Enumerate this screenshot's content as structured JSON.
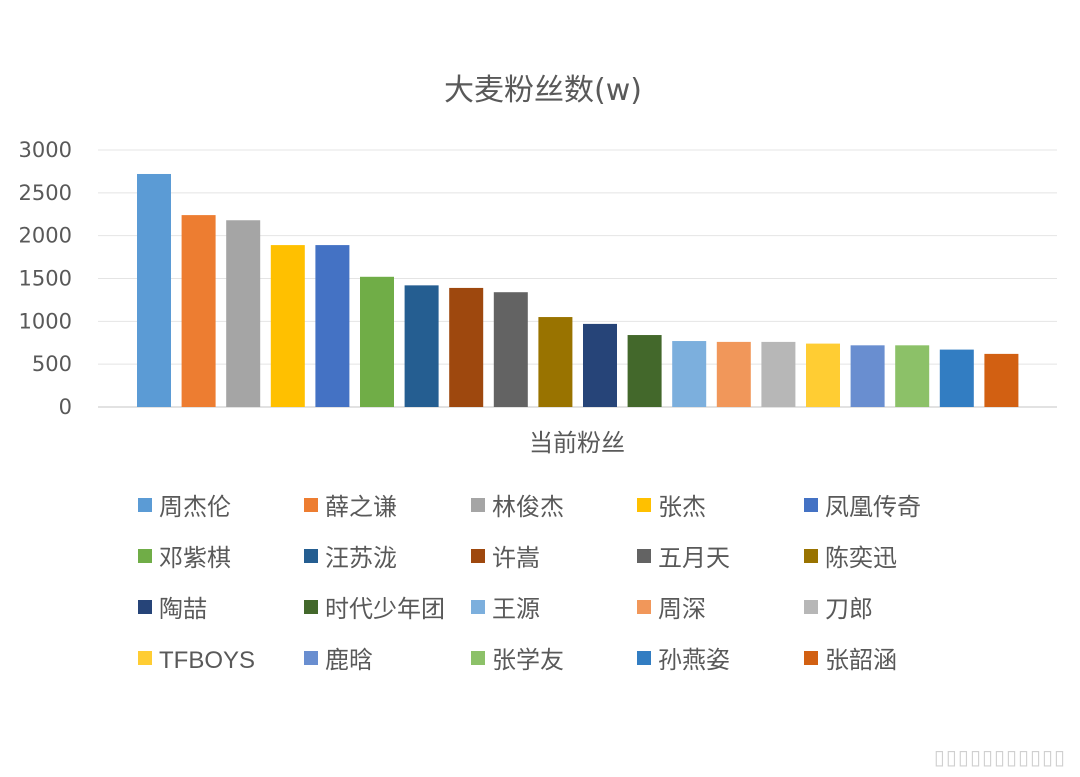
{
  "chart_data": {
    "type": "bar",
    "title": "大麦粉丝数(w)",
    "xlabel": "当前粉丝",
    "ylabel": "",
    "ylim": [
      0,
      3000
    ],
    "yticks": [
      0,
      500,
      1000,
      1500,
      2000,
      2500,
      3000
    ],
    "grid": true,
    "legend_position": "bottom",
    "categories": [
      "当前粉丝"
    ],
    "series": [
      {
        "name": "周杰伦",
        "values": [
          2720
        ],
        "color": "#5B9BD5"
      },
      {
        "name": "薛之谦",
        "values": [
          2240
        ],
        "color": "#ED7D31"
      },
      {
        "name": "林俊杰",
        "values": [
          2180
        ],
        "color": "#A5A5A5"
      },
      {
        "name": "张杰",
        "values": [
          1890
        ],
        "color": "#FFC000"
      },
      {
        "name": "凤凰传奇",
        "values": [
          1890
        ],
        "color": "#4472C4"
      },
      {
        "name": "邓紫棋",
        "values": [
          1520
        ],
        "color": "#70AD47"
      },
      {
        "name": "汪苏泷",
        "values": [
          1420
        ],
        "color": "#255E91"
      },
      {
        "name": "许嵩",
        "values": [
          1390
        ],
        "color": "#9E480E"
      },
      {
        "name": "五月天",
        "values": [
          1340
        ],
        "color": "#636363"
      },
      {
        "name": "陈奕迅",
        "values": [
          1050
        ],
        "color": "#997300"
      },
      {
        "name": "陶喆",
        "values": [
          970
        ],
        "color": "#264478"
      },
      {
        "name": "时代少年团",
        "values": [
          840
        ],
        "color": "#43682B"
      },
      {
        "name": "王源",
        "values": [
          770
        ],
        "color": "#7CAFDD"
      },
      {
        "name": "周深",
        "values": [
          760
        ],
        "color": "#F1975A"
      },
      {
        "name": "刀郎",
        "values": [
          760
        ],
        "color": "#B7B7B7"
      },
      {
        "name": "TFBOYS",
        "values": [
          740
        ],
        "color": "#FFCD33"
      },
      {
        "name": "鹿晗",
        "values": [
          720
        ],
        "color": "#698ED0"
      },
      {
        "name": "张学友",
        "values": [
          720
        ],
        "color": "#8CC168"
      },
      {
        "name": "孙燕姿",
        "values": [
          670
        ],
        "color": "#327DC2"
      },
      {
        "name": "张韶涵",
        "values": [
          620
        ],
        "color": "#D26012"
      }
    ]
  }
}
